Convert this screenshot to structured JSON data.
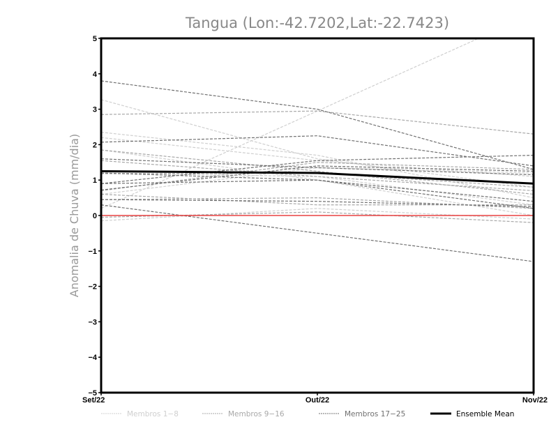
{
  "chart_data": {
    "type": "line",
    "title": "Tangua (Lon:-42.7202,Lat:-22.7423)",
    "xlabel": "",
    "ylabel": "Anomalia de Chuva (mm/dia)",
    "categories": [
      "Set/22",
      "Out/22",
      "Nov/22"
    ],
    "ylim": [
      -5,
      5
    ],
    "yticks": [
      -5,
      -4,
      -3,
      -2,
      -1,
      0,
      1,
      2,
      3,
      4,
      5
    ],
    "ytick_labels": [
      "−5",
      "−4",
      "−3",
      "−2",
      "−1",
      "0",
      "1",
      "2",
      "3",
      "4",
      "5"
    ],
    "grid": false,
    "legend_position": "bottom",
    "groups": [
      {
        "name": "Membros 1-8",
        "color": "#cfcfcf",
        "series": [
          [
            3.27,
            1.6,
            0.8
          ],
          [
            2.35,
            1.7,
            0.5
          ],
          [
            2.2,
            1.55,
            1.1
          ],
          [
            0.2,
            2.95,
            5.7
          ],
          [
            1.2,
            1.1,
            0.3
          ],
          [
            -0.15,
            0.2,
            -0.1
          ],
          [
            0.6,
            1.35,
            1.2
          ],
          [
            1.85,
            1.0,
            0.0
          ]
        ]
      },
      {
        "name": "Membros 9-16",
        "color": "#a8a8a8",
        "series": [
          [
            2.85,
            2.95,
            2.3
          ],
          [
            1.85,
            1.25,
            0.6
          ],
          [
            0.7,
            1.5,
            1.3
          ],
          [
            0.45,
            0.5,
            0.2
          ],
          [
            1.18,
            1.2,
            0.8
          ],
          [
            0.6,
            0.3,
            0.3
          ],
          [
            -0.05,
            0.1,
            -0.2
          ],
          [
            1.55,
            1.1,
            0.7
          ]
        ]
      },
      {
        "name": "Membros 17-25",
        "color": "#707070",
        "series": [
          [
            3.8,
            3.0,
            1.3
          ],
          [
            2.07,
            2.25,
            1.4
          ],
          [
            0.9,
            1.55,
            1.7
          ],
          [
            0.3,
            -0.5,
            -1.3
          ],
          [
            0.72,
            1.4,
            1.25
          ],
          [
            1.2,
            1.0,
            0.4
          ],
          [
            0.45,
            0.4,
            0.25
          ],
          [
            1.6,
            1.35,
            1.15
          ],
          [
            0.9,
            1.0,
            0.2
          ]
        ]
      }
    ],
    "ensemble_mean": {
      "name": "Ensemble Mean",
      "color": "#000000",
      "values": [
        1.25,
        1.2,
        0.9
      ]
    },
    "zero_line": {
      "color": "#e84040",
      "value": 0
    }
  }
}
